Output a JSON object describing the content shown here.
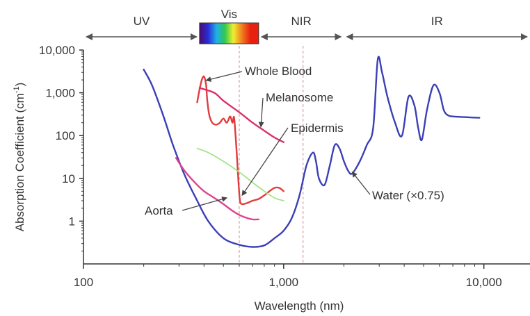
{
  "chart_data": {
    "type": "line",
    "title": "",
    "xlabel": "Wavelength (nm)",
    "ylabel_main": "Absorption Coefficient (cm",
    "ylabel_sup": "-1",
    "ylabel_close": ")",
    "xscale": "log",
    "yscale": "log",
    "xlim": [
      100,
      17000
    ],
    "ylim": [
      0.1,
      10000
    ],
    "x_ticks": [
      {
        "value": 100,
        "label": "100"
      },
      {
        "value": 1000,
        "label": "1,000"
      },
      {
        "value": 10000,
        "label": "10,000"
      }
    ],
    "y_ticks": [
      {
        "value": 1,
        "label": "1"
      },
      {
        "value": 10,
        "label": "10"
      },
      {
        "value": 100,
        "label": "100"
      },
      {
        "value": 1000,
        "label": "1,000"
      },
      {
        "value": 10000,
        "label": "10,000"
      }
    ],
    "grid": false,
    "colors": {
      "axis": "#333333",
      "water": "#3b3fb5",
      "whole_blood": "#e33b3b",
      "melanosome": "#d9306a",
      "epidermis": "#a6e38a",
      "aorta": "#e0418c",
      "divider": "#d9a0a0",
      "arrow": "#444444"
    },
    "regions": [
      {
        "name": "UV",
        "from": 100,
        "to": 380
      },
      {
        "name": "Vis",
        "from": 380,
        "to": 750
      },
      {
        "name": "NIR",
        "from": 750,
        "to": 2000
      },
      {
        "name": "IR",
        "from": 2000,
        "to": 17000
      }
    ],
    "spectrum_colors": [
      "#4a0a6e",
      "#2a2ad8",
      "#20b0e8",
      "#30c850",
      "#f0f030",
      "#f08020",
      "#e82010",
      "#e82010"
    ],
    "divider_lines": [
      600,
      1250
    ],
    "series": [
      {
        "name": "Water (×0.75)",
        "key": "water",
        "x": [
          200,
          220,
          250,
          280,
          320,
          370,
          420,
          500,
          600,
          700,
          800,
          900,
          1000,
          1100,
          1200,
          1300,
          1400,
          1450,
          1500,
          1600,
          1700,
          1800,
          1900,
          2000,
          2100,
          2200,
          2400,
          2600,
          2800,
          2950,
          3100,
          3300,
          3600,
          3900,
          4200,
          4500,
          4700,
          4900,
          5200,
          5600,
          6000,
          6300,
          6600,
          7000,
          8000,
          9500
        ],
        "y": [
          3500,
          1500,
          300,
          60,
          12,
          3,
          1,
          0.4,
          0.28,
          0.25,
          0.27,
          0.4,
          0.6,
          1.2,
          4,
          20,
          40,
          25,
          10,
          7,
          20,
          60,
          50,
          25,
          15,
          13,
          25,
          60,
          150,
          6000,
          3000,
          800,
          200,
          100,
          800,
          500,
          150,
          80,
          400,
          1500,
          1000,
          400,
          300,
          280,
          270,
          260
        ]
      },
      {
        "name": "Whole Blood",
        "key": "whole_blood",
        "x": [
          370,
          380,
          390,
          400,
          410,
          415,
          425,
          440,
          460,
          480,
          500,
          520,
          540,
          555,
          565,
          575,
          585,
          595,
          605,
          620,
          650,
          700,
          750,
          800,
          850,
          900,
          950,
          1000
        ],
        "y": [
          600,
          1200,
          2000,
          2400,
          1500,
          700,
          300,
          200,
          180,
          200,
          250,
          200,
          280,
          200,
          270,
          100,
          30,
          8,
          3,
          2.5,
          2.6,
          3,
          3.3,
          4,
          5,
          6,
          6,
          5
        ]
      },
      {
        "name": "Melanosome",
        "key": "melanosome",
        "x": [
          380,
          450,
          500,
          600,
          700,
          800,
          900,
          1000
        ],
        "y": [
          1300,
          1000,
          650,
          350,
          200,
          130,
          90,
          70
        ]
      },
      {
        "name": "Epidermis",
        "key": "epidermis",
        "x": [
          370,
          420,
          500,
          600,
          700,
          800,
          900,
          1000
        ],
        "y": [
          50,
          40,
          25,
          14,
          8,
          5,
          3.5,
          3
        ]
      },
      {
        "name": "Aorta",
        "key": "aorta",
        "x": [
          290,
          320,
          360,
          400,
          450,
          500,
          550,
          600,
          650,
          700,
          750
        ],
        "y": [
          30,
          15,
          8,
          5,
          3.5,
          2.5,
          1.8,
          1.4,
          1.2,
          1.1,
          1.1
        ]
      }
    ],
    "annotations": [
      {
        "key": "water",
        "text": "Water (×0.75)",
        "arrow_to": [
          2200,
          14
        ]
      },
      {
        "key": "whole_blood",
        "text": "Whole Blood",
        "arrow_to": [
          410,
          1950
        ]
      },
      {
        "key": "melanosome",
        "text": "Melanosome",
        "arrow_to": [
          770,
          160
        ]
      },
      {
        "key": "epidermis",
        "text": "Epidermis",
        "arrow_to": [
          620,
          4
        ]
      },
      {
        "key": "aorta",
        "text": "Aorta",
        "arrow_to": [
          520,
          3.5
        ]
      }
    ]
  }
}
